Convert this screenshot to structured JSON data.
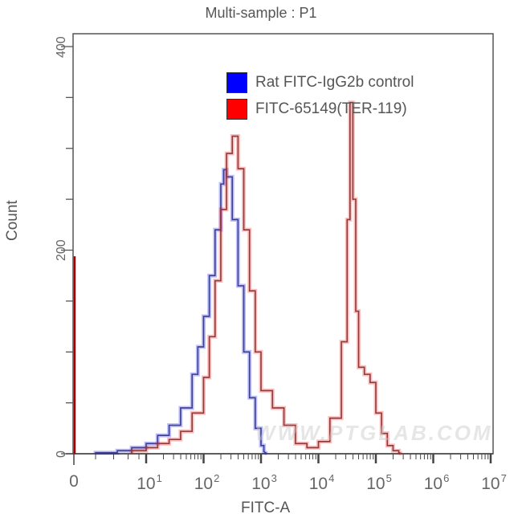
{
  "chart_data": {
    "type": "line",
    "title": "Multi-sample : P1",
    "xlabel": "FITC-A",
    "ylabel": "Count",
    "xscale": "biexponential/log",
    "x_tick_labels": [
      {
        "base": "0",
        "exp": ""
      },
      {
        "base": "10",
        "exp": "1"
      },
      {
        "base": "10",
        "exp": "2"
      },
      {
        "base": "10",
        "exp": "3"
      },
      {
        "base": "10",
        "exp": "4"
      },
      {
        "base": "10",
        "exp": "5"
      },
      {
        "base": "10",
        "exp": "6"
      },
      {
        "base": "10",
        "exp": "7"
      }
    ],
    "y_ticks": [
      0,
      200,
      400
    ],
    "ylim": [
      0,
      400
    ],
    "grid": false,
    "legend_position": "upper right (inside)",
    "series": [
      {
        "name": "Rat FITC-IgG2b control",
        "color": "#0000ff",
        "x_log10": [
          0.3,
          0.6,
          0.8,
          1.0,
          1.2,
          1.4,
          1.6,
          1.8,
          1.9,
          2.0,
          2.1,
          2.2,
          2.3,
          2.35,
          2.4,
          2.5,
          2.6,
          2.7,
          2.8,
          2.9,
          3.0,
          3.05
        ],
        "counts": [
          1,
          3,
          6,
          10,
          18,
          28,
          45,
          78,
          105,
          135,
          175,
          220,
          265,
          279,
          272,
          230,
          165,
          100,
          55,
          25,
          8,
          2
        ]
      },
      {
        "name": "FITC-65149(TER-119)",
        "color": "#ff0000",
        "x_log10": [
          0.0,
          0.8,
          1.0,
          1.2,
          1.4,
          1.6,
          1.8,
          2.0,
          2.1,
          2.2,
          2.3,
          2.4,
          2.5,
          2.6,
          2.7,
          2.8,
          2.9,
          3.0,
          3.2,
          3.4,
          3.6,
          3.8,
          4.0,
          4.2,
          4.4,
          4.5,
          4.55,
          4.6,
          4.65,
          4.7,
          4.8,
          4.9,
          5.0,
          5.1,
          5.2,
          5.3,
          5.4
        ],
        "counts": [
          194,
          3,
          6,
          10,
          14,
          22,
          40,
          75,
          115,
          170,
          240,
          295,
          312,
          280,
          220,
          160,
          100,
          62,
          45,
          28,
          10,
          6,
          12,
          35,
          110,
          230,
          345,
          250,
          140,
          85,
          78,
          70,
          40,
          20,
          8,
          3,
          1
        ]
      }
    ],
    "annotations": [
      "WWW.PTGLAB.COM"
    ]
  },
  "legend": {
    "items": [
      {
        "label": "Rat FITC-IgG2b control",
        "color": "#0000ff"
      },
      {
        "label": "FITC-65149(TER-119)",
        "color": "#ff0000"
      }
    ]
  },
  "watermark": "WWW.PTGLAB.COM"
}
